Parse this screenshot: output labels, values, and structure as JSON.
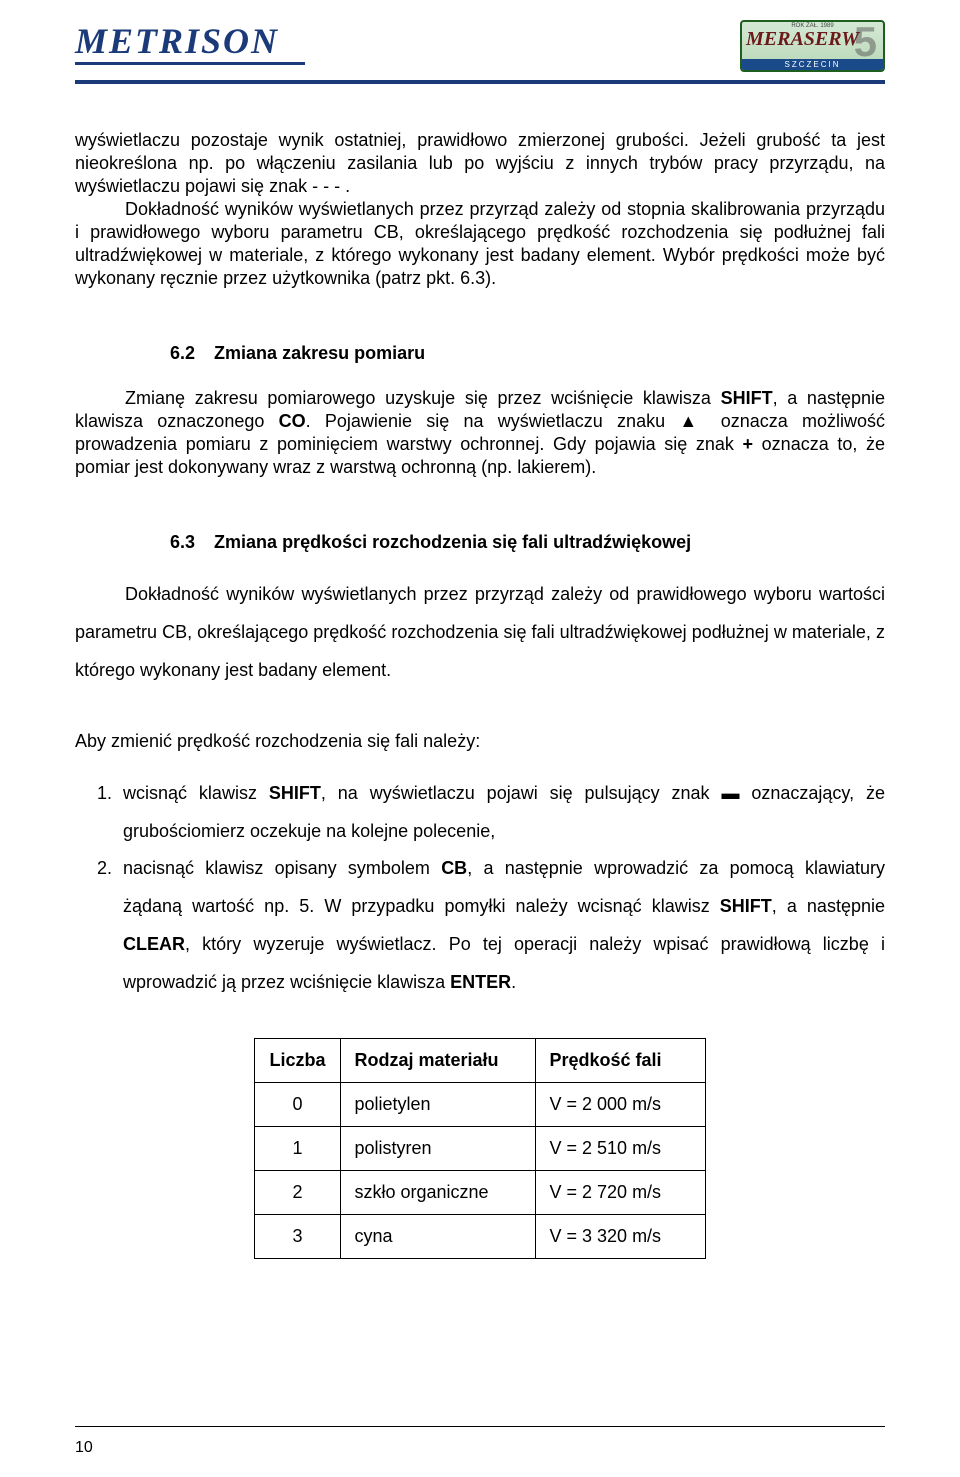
{
  "header": {
    "logo_left": "METRISON",
    "logo_right_top": "ROK ZAŁ. 1989",
    "logo_right_mid": "MERASERW",
    "logo_right_five": "5",
    "logo_right_bottom": "SZCZECIN"
  },
  "para1": "wyświetlaczu pozostaje wynik ostatniej, prawidłowo zmierzonej grubości. Jeżeli grubość ta jest nieokreślona np. po włączeniu zasilania lub po wyjściu z innych trybów pracy przyrządu, na wyświetlaczu pojawi się znak  - - - .",
  "para2": "Dokładność wyników wyświetlanych przez przyrząd zależy od stopnia skalibrowania przyrządu i prawidłowego wyboru parametru CB, określającego prędkość rozchodzenia się podłużnej fali ultradźwiękowej w materiale, z którego wykonany jest badany element. Wybór prędkości może być wykonany ręcznie przez użytkownika (patrz pkt. 6.3).",
  "section62": {
    "num": "6.2",
    "title": "Zmiana zakresu pomiaru"
  },
  "para62_pre": "Zmianę zakresu pomiarowego uzyskuje się przez wciśnięcie klawisza ",
  "para62_shift": "SHIFT",
  "para62_mid1": ", a następnie klawisza oznaczonego ",
  "para62_co": "CO",
  "para62_mid2": ". Pojawienie się na wyświetlaczu znaku ▲ oznacza możliwość prowadzenia pomiaru z pominięciem warstwy ochronnej. Gdy pojawia się znak ",
  "para62_plus": "+",
  "para62_end": "  oznacza to, że pomiar jest dokonywany wraz z warstwą ochronną (np. lakierem).",
  "section63": {
    "num": "6.3",
    "title": "Zmiana prędkości rozchodzenia się fali ultradźwiękowej"
  },
  "para63": "Dokładność wyników wyświetlanych przez przyrząd zależy od prawidłowego wyboru wartości parametru CB, określającego prędkość rozchodzenia się fali ultradźwiękowej podłużnej w materiale, z którego wykonany jest badany element.",
  "steps_intro": "Aby zmienić prędkość rozchodzenia się fali należy:",
  "step1_a": "wcisnąć klawisz ",
  "step1_shift": "SHIFT",
  "step1_b": ", na wyświetlaczu pojawi się pulsujący znak ▬ oznaczający, że grubościomierz oczekuje na kolejne polecenie,",
  "step2_a": "nacisnąć klawisz opisany symbolem ",
  "step2_cb": "CB",
  "step2_b": ", a następnie wprowadzić za pomocą klawiatury żądaną wartość np. 5. W przypadku pomyłki należy wcisnąć klawisz ",
  "step2_shift": "SHIFT",
  "step2_c": ", a następnie ",
  "step2_clear": "CLEAR",
  "step2_d": ", który wyzeruje wyświetlacz. Po tej operacji należy wpisać prawidłową liczbę i wprowadzić ją przez wciśnięcie klawisza ",
  "step2_enter": "ENTER",
  "step2_e": ".",
  "table": {
    "columns": [
      "Liczba",
      "Rodzaj materiału",
      "Prędkość fali"
    ],
    "rows": [
      [
        "0",
        "polietylen",
        "V = 2 000 m/s"
      ],
      [
        "1",
        "polistyren",
        "V = 2 510 m/s"
      ],
      [
        "2",
        "szkło organiczne",
        "V = 2 720 m/s"
      ],
      [
        "3",
        "cyna",
        "V = 3 320 m/s"
      ]
    ]
  },
  "page_number": "10"
}
